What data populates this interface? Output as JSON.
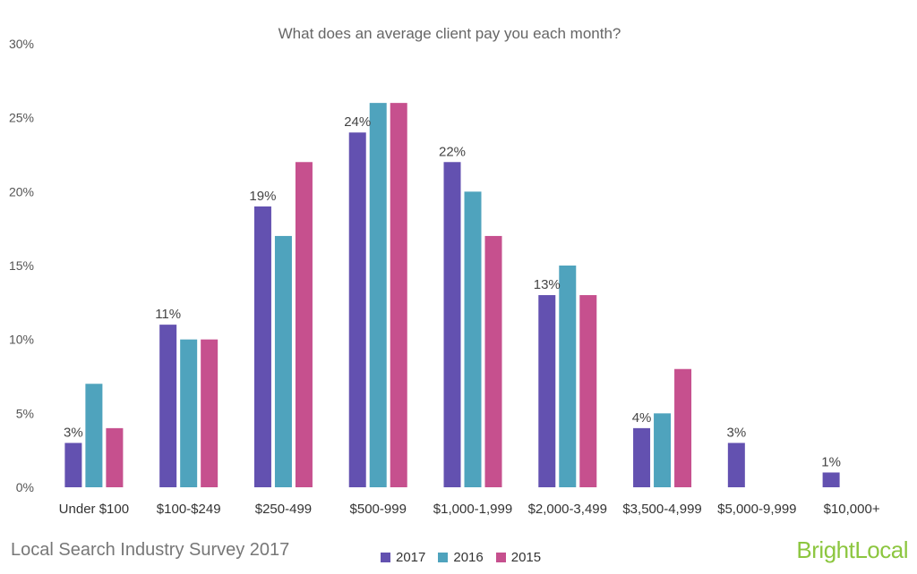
{
  "chart_data": {
    "type": "bar",
    "title": "What does an average client pay you each month?",
    "categories": [
      "Under $100",
      "$100-$249",
      "$250-499",
      "$500-999",
      "$1,000-1,999",
      "$2,000-3,499",
      "$3,500-4,999",
      "$5,000-9,999",
      "$10,000+"
    ],
    "series": [
      {
        "name": "2017",
        "color": "#6351b0",
        "values": [
          3,
          11,
          19,
          24,
          22,
          13,
          4,
          3,
          1
        ],
        "labels": [
          "3%",
          "11%",
          "19%",
          "24%",
          "22%",
          "13%",
          "4%",
          "3%",
          "1%"
        ]
      },
      {
        "name": "2016",
        "color": "#4fa3bd",
        "values": [
          7,
          10,
          17,
          26,
          20,
          15,
          5,
          null,
          null
        ]
      },
      {
        "name": "2015",
        "color": "#c6508e",
        "values": [
          4,
          10,
          22,
          26,
          17,
          13,
          8,
          null,
          null
        ]
      }
    ],
    "ylim": [
      0,
      30
    ],
    "yticks": [
      "0%",
      "5%",
      "10%",
      "15%",
      "20%",
      "25%",
      "30%"
    ],
    "ytick_values": [
      0,
      5,
      10,
      15,
      20,
      25,
      30
    ],
    "grid": false,
    "legend_position": "bottom-center"
  },
  "footer": {
    "survey_title": "Local Search Industry Survey 2017",
    "brand": "BrightLocal"
  }
}
